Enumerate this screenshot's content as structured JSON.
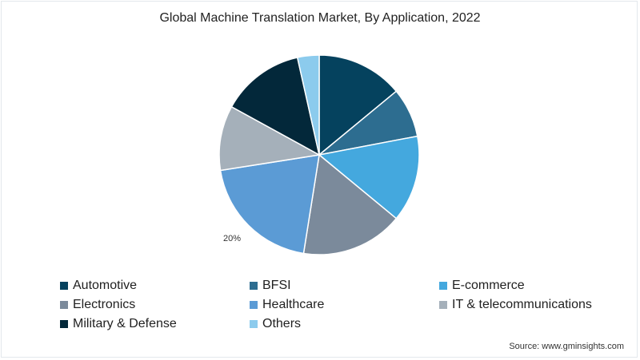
{
  "chart_data": {
    "type": "pie",
    "title": "Global Machine Translation Market, By Application, 2022",
    "categories": [
      "Automotive",
      "BFSI",
      "E-commerce",
      "Electronics",
      "Healthcare",
      "IT & telecommunications",
      "Military & Defense",
      "Others"
    ],
    "values": [
      14,
      8,
      14,
      16.5,
      20,
      10.5,
      13.5,
      3.5
    ],
    "colors": [
      "#05425e",
      "#2d6d90",
      "#44a8de",
      "#7b8a9b",
      "#5b9bd5",
      "#a5b0ba",
      "#03283a",
      "#8ccbed"
    ],
    "annotations": [
      {
        "category": "Healthcare",
        "label": "20%"
      }
    ],
    "legend_position": "bottom",
    "unit": "%"
  },
  "title": "Global Machine Translation Market, By Application, 2022",
  "healthcare_label": "20%",
  "legend": [
    {
      "label": "Automotive",
      "color": "#05425e"
    },
    {
      "label": "BFSI",
      "color": "#2d6d90"
    },
    {
      "label": "E-commerce",
      "color": "#44a8de"
    },
    {
      "label": "Electronics",
      "color": "#7b8a9b"
    },
    {
      "label": "Healthcare",
      "color": "#5b9bd5"
    },
    {
      "label": "IT & telecommunications",
      "color": "#a5b0ba"
    },
    {
      "label": "Military & Defense",
      "color": "#03283a"
    },
    {
      "label": "Others",
      "color": "#8ccbed"
    }
  ],
  "source": "Source: www.gminsights.com"
}
